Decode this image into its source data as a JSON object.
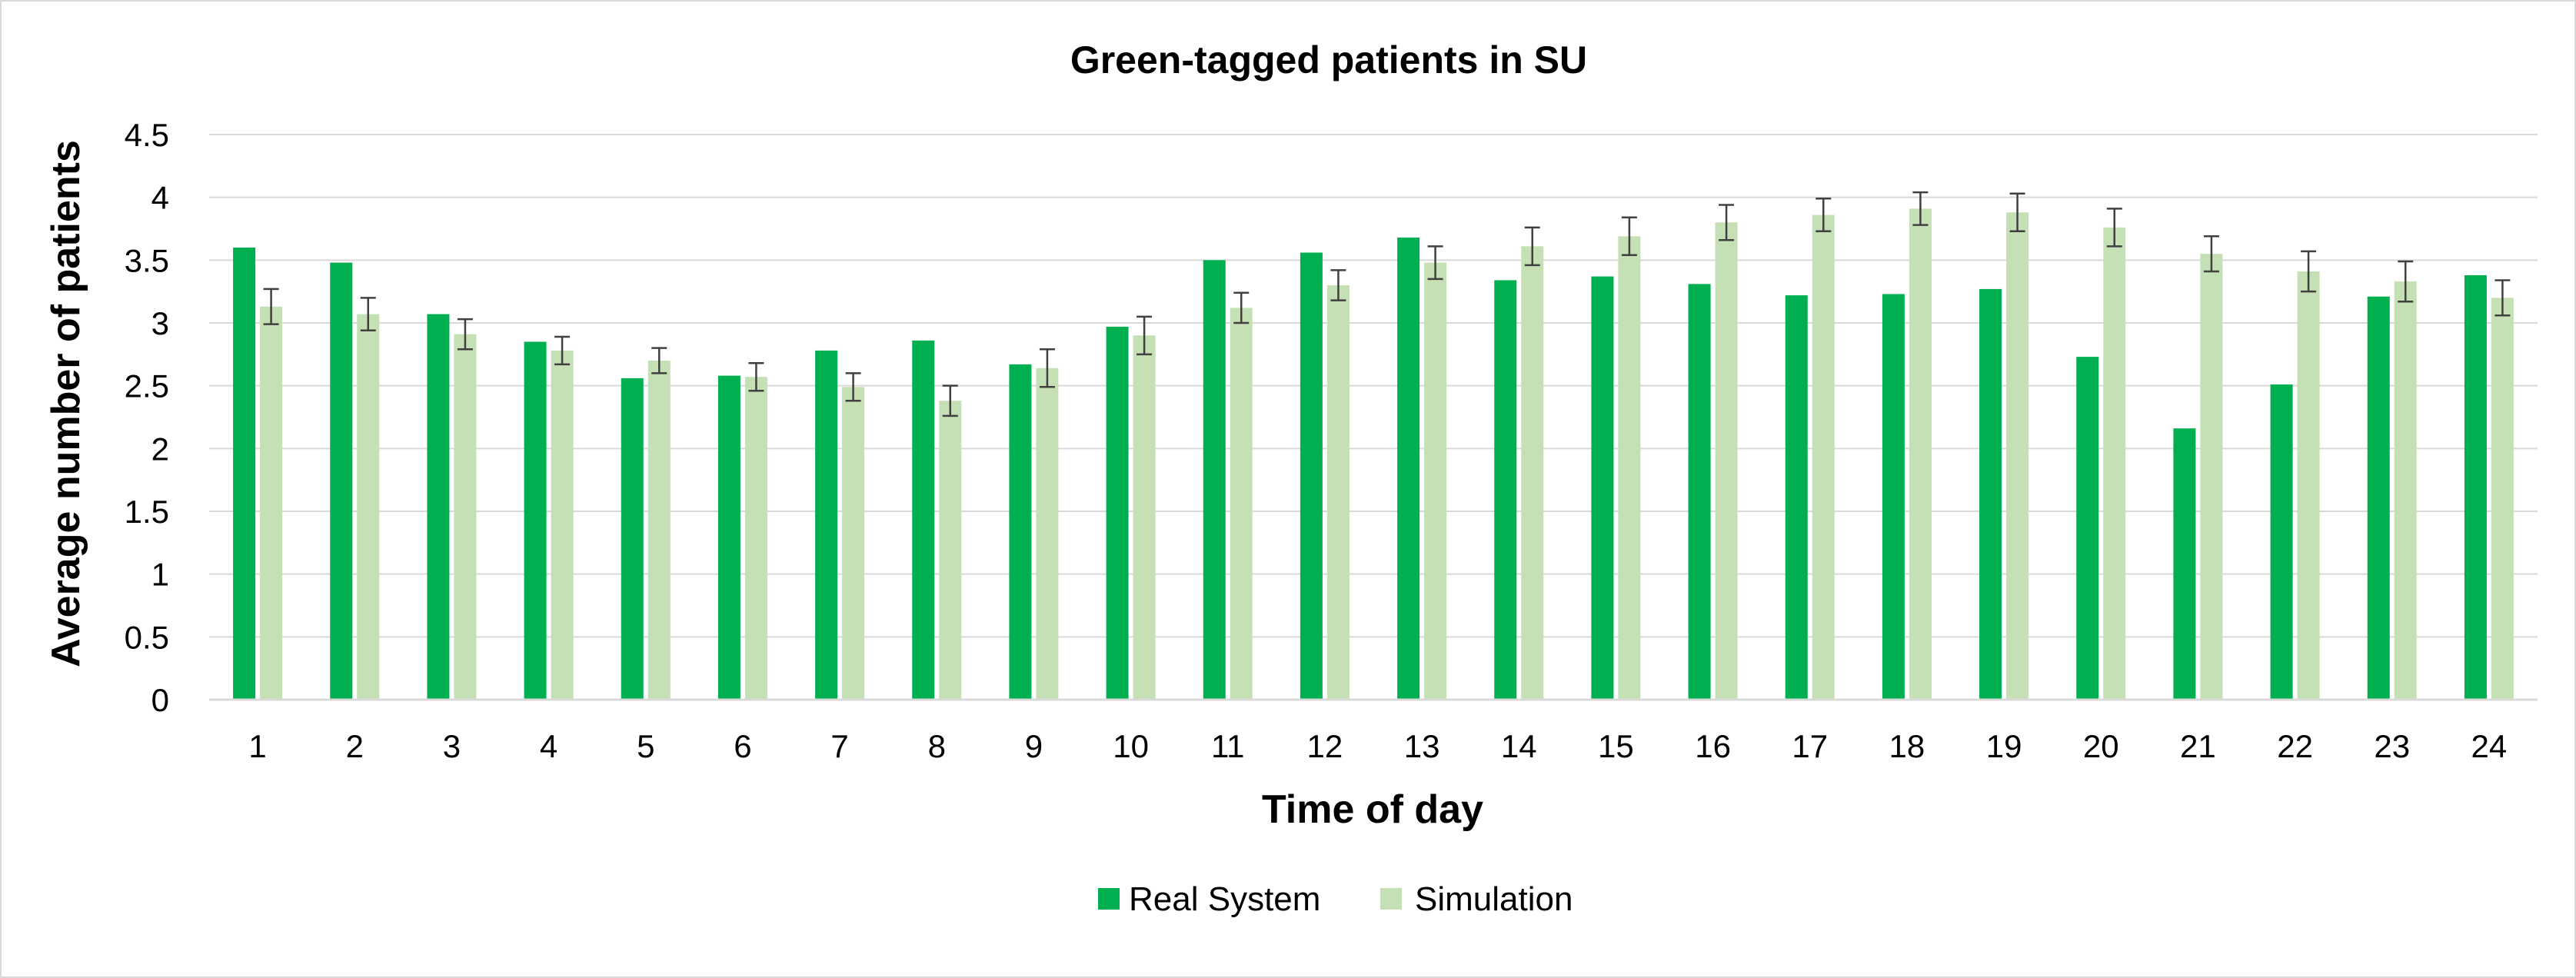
{
  "chart_data": {
    "type": "bar",
    "title": "Green-tagged patients in SU",
    "xlabel": "Time of day",
    "ylabel": "Average number of patients",
    "ylim": [
      0,
      4.5
    ],
    "yticks": [
      "0",
      "0.5",
      "1",
      "1.5",
      "2",
      "2.5",
      "3",
      "3.5",
      "4",
      "4.5"
    ],
    "ytick_values": [
      0,
      0.5,
      1,
      1.5,
      2,
      2.5,
      3,
      3.5,
      4,
      4.5
    ],
    "grid": true,
    "legend_position": "bottom",
    "categories": [
      "1",
      "2",
      "3",
      "4",
      "5",
      "6",
      "7",
      "8",
      "9",
      "10",
      "11",
      "12",
      "13",
      "14",
      "15",
      "16",
      "17",
      "18",
      "19",
      "20",
      "21",
      "22",
      "23",
      "24"
    ],
    "series": [
      {
        "name": "Real System",
        "color": "#00b050",
        "values": [
          3.6,
          3.48,
          3.07,
          2.85,
          2.56,
          2.58,
          2.78,
          2.86,
          2.67,
          2.97,
          3.5,
          3.56,
          3.68,
          3.34,
          3.37,
          3.31,
          3.22,
          3.23,
          3.27,
          2.73,
          2.16,
          2.51,
          3.21,
          3.38
        ]
      },
      {
        "name": "Simulation",
        "color": "#c5e0b4",
        "values": [
          3.13,
          3.07,
          2.91,
          2.78,
          2.7,
          2.57,
          2.49,
          2.38,
          2.64,
          2.9,
          3.12,
          3.3,
          3.48,
          3.61,
          3.69,
          3.8,
          3.86,
          3.91,
          3.88,
          3.76,
          3.55,
          3.41,
          3.33,
          3.2
        ],
        "error": [
          0.14,
          0.13,
          0.12,
          0.11,
          0.1,
          0.11,
          0.11,
          0.12,
          0.15,
          0.15,
          0.12,
          0.12,
          0.13,
          0.15,
          0.15,
          0.14,
          0.13,
          0.13,
          0.15,
          0.15,
          0.14,
          0.16,
          0.16,
          0.14
        ]
      }
    ]
  }
}
